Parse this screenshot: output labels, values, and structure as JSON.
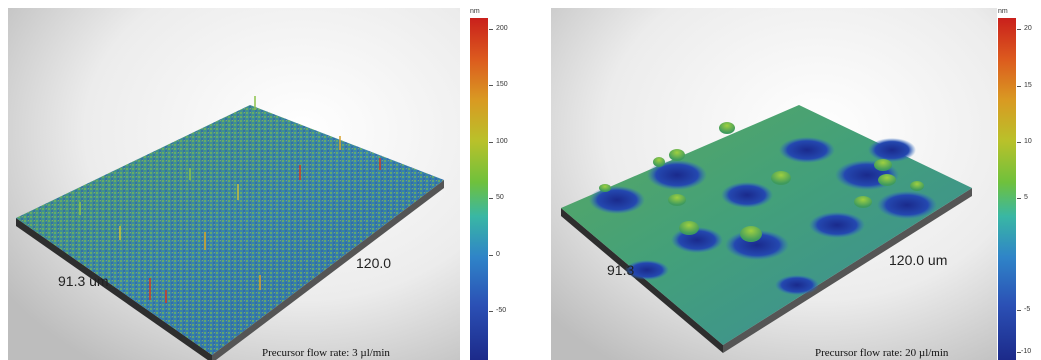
{
  "left_panel": {
    "label_y_dim": "91.3 um",
    "label_x_dim": "120.0",
    "caption": "Precursor flow rate: 3 µl/min",
    "colorbar": {
      "unit": "nm",
      "ticks": [
        "200",
        "150",
        "100",
        "50",
        "0",
        "-50"
      ],
      "colors": [
        "#c9201c",
        "#d99a22",
        "#6fc13c",
        "#39b7a4",
        "#2f84c8",
        "#1c2a8a"
      ]
    }
  },
  "right_panel": {
    "label_y_dim": "91.3",
    "label_x_dim": "120.0 um",
    "caption": "Precursor flow rate: 20 µl/min",
    "colorbar": {
      "unit": "nm",
      "ticks": [
        "20",
        "15",
        "10",
        "5",
        "-5",
        "-10"
      ],
      "colors": [
        "#c9201c",
        "#d99a22",
        "#6fc13c",
        "#39b7a4",
        "#2f84c8",
        "#1c2a8a"
      ]
    }
  }
}
